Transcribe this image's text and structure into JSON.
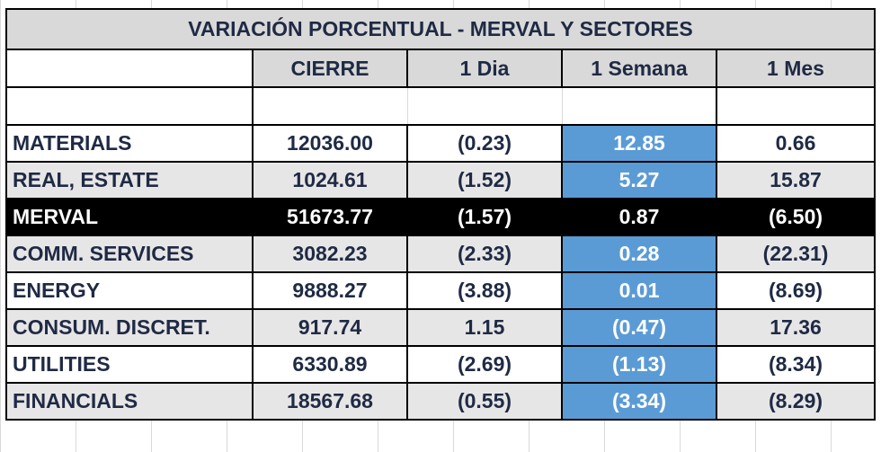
{
  "title": "VARIACIÓN PORCENTUAL - MERVAL Y SECTORES",
  "columns": [
    "",
    "CIERRE",
    "1 Dia",
    "1 Semana",
    "1 Mes"
  ],
  "rows": [
    {
      "name": "MATERIALS",
      "cierre": "12036.00",
      "dia": "(0.23)",
      "semana": "12.85",
      "mes": "0.66"
    },
    {
      "name": "REAL, ESTATE",
      "cierre": "1024.61",
      "dia": "(1.52)",
      "semana": "5.27",
      "mes": "15.87"
    },
    {
      "name": "MERVAL",
      "cierre": "51673.77",
      "dia": "(1.57)",
      "semana": "0.87",
      "mes": "(6.50)"
    },
    {
      "name": "COMM. SERVICES",
      "cierre": "3082.23",
      "dia": "(2.33)",
      "semana": "0.28",
      "mes": "(22.31)"
    },
    {
      "name": "ENERGY",
      "cierre": "9888.27",
      "dia": "(3.88)",
      "semana": "0.01",
      "mes": "(8.69)"
    },
    {
      "name": "CONSUM. DISCRET.",
      "cierre": "917.74",
      "dia": "1.15",
      "semana": "(0.47)",
      "mes": "17.36"
    },
    {
      "name": "UTILITIES",
      "cierre": "6330.89",
      "dia": "(2.69)",
      "semana": "(1.13)",
      "mes": "(8.34)"
    },
    {
      "name": "FINANCIALS",
      "cierre": "18567.68",
      "dia": "(0.55)",
      "semana": "(3.34)",
      "mes": "(8.29)"
    }
  ],
  "colors": {
    "header_bg": "#d9d9d9",
    "row_alt_bg": "#e7e6e6",
    "week_highlight": "#5b9bd5",
    "merval_bg": "#000000",
    "text": "#1f2a44"
  }
}
